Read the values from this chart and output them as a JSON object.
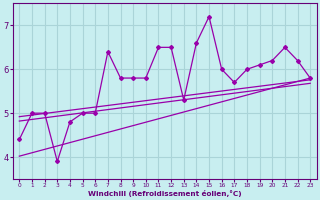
{
  "xlabel": "Windchill (Refroidissement éolien,°C)",
  "bg_color": "#c8eef0",
  "grid_color": "#aad4d8",
  "line_color": "#9900aa",
  "x_data": [
    0,
    1,
    2,
    3,
    4,
    5,
    6,
    7,
    8,
    9,
    10,
    11,
    12,
    13,
    14,
    15,
    16,
    17,
    18,
    19,
    20,
    21,
    22,
    23
  ],
  "y_data": [
    4.4,
    5.0,
    5.0,
    3.9,
    4.8,
    5.0,
    5.0,
    6.4,
    5.8,
    5.8,
    5.8,
    6.5,
    6.5,
    5.3,
    6.6,
    7.2,
    6.0,
    5.7,
    6.0,
    6.1,
    6.2,
    6.5,
    6.2,
    5.8
  ],
  "ylim": [
    3.5,
    7.5
  ],
  "xlim": [
    -0.5,
    23.5
  ],
  "yticks": [
    4,
    5,
    6,
    7
  ],
  "xticks": [
    0,
    1,
    2,
    3,
    4,
    5,
    6,
    7,
    8,
    9,
    10,
    11,
    12,
    13,
    14,
    15,
    16,
    17,
    18,
    19,
    20,
    21,
    22,
    23
  ],
  "reg_line1": [
    4.92,
    5.76
  ],
  "reg_line2": [
    4.82,
    5.68
  ],
  "reg_line3": [
    4.02,
    5.8
  ]
}
